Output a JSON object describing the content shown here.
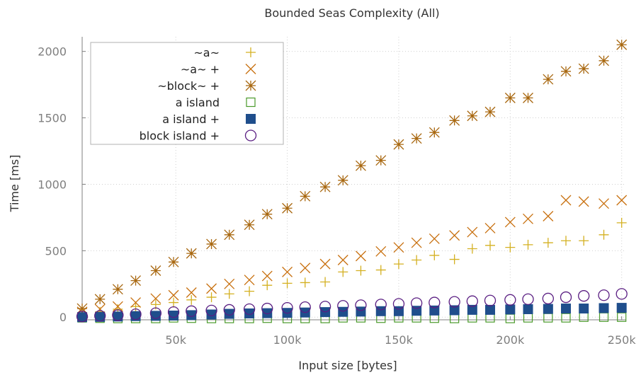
{
  "chart_data": {
    "type": "scatter",
    "title": "Bounded Seas Complexity (All)",
    "xlabel": "Input size [bytes]",
    "ylabel": "Time [ms]",
    "xlim": [
      8000,
      252000
    ],
    "ylim": [
      -20,
      2110
    ],
    "x_ticks": [
      50000,
      100000,
      150000,
      200000,
      250000
    ],
    "x_tick_labels": [
      "50k",
      "100k",
      "150k",
      "200k",
      "250k"
    ],
    "y_ticks": [
      0,
      500,
      1000,
      1500,
      2000
    ],
    "y_tick_labels": [
      "0",
      "500",
      "1000",
      "1500",
      "2000"
    ],
    "grid": true,
    "legend_position": "top-left",
    "x": [
      8000,
      16000,
      24000,
      32000,
      41000,
      49000,
      57000,
      66000,
      74000,
      83000,
      91000,
      100000,
      108000,
      117000,
      125000,
      133000,
      142000,
      150000,
      158000,
      166000,
      175000,
      183000,
      191000,
      200000,
      208000,
      217000,
      225000,
      233000,
      242000,
      250000
    ],
    "series": [
      {
        "name": "~a~",
        "marker": "plus",
        "color": "#d4b021",
        "values": [
          25,
          40,
          60,
          80,
          95,
          110,
          130,
          150,
          175,
          195,
          240,
          255,
          260,
          265,
          340,
          350,
          355,
          400,
          430,
          465,
          435,
          515,
          540,
          525,
          545,
          560,
          575,
          575,
          620,
          710
        ]
      },
      {
        "name": "~a~ +",
        "marker": "x",
        "color": "#c8700f",
        "values": [
          40,
          60,
          80,
          110,
          140,
          165,
          185,
          215,
          250,
          280,
          310,
          340,
          370,
          400,
          430,
          460,
          495,
          525,
          560,
          590,
          615,
          640,
          670,
          715,
          740,
          760,
          880,
          870,
          855,
          880
        ]
      },
      {
        "name": "~block~ +",
        "marker": "asterisk",
        "color": "#a8670f",
        "values": [
          65,
          135,
          210,
          275,
          350,
          415,
          480,
          550,
          620,
          695,
          775,
          820,
          910,
          980,
          1030,
          1140,
          1180,
          1300,
          1345,
          1390,
          1480,
          1515,
          1545,
          1650,
          1650,
          1790,
          1850,
          1870,
          1930,
          2050
        ]
      },
      {
        "name": "a island",
        "marker": "open-square",
        "color": "#4a9a2a",
        "values": [
          -5,
          -8,
          -10,
          -10,
          -10,
          -5,
          -8,
          -10,
          -10,
          -10,
          -8,
          -10,
          -10,
          -10,
          -5,
          -5,
          -8,
          -5,
          -5,
          -8,
          -10,
          -5,
          -5,
          -10,
          -5,
          -5,
          -5,
          0,
          0,
          0
        ]
      },
      {
        "name": "a island +",
        "marker": "filled-square",
        "color": "#1f4e8c",
        "values": [
          0,
          2,
          5,
          8,
          10,
          12,
          15,
          20,
          25,
          28,
          30,
          32,
          35,
          38,
          40,
          42,
          45,
          45,
          48,
          50,
          52,
          55,
          55,
          58,
          60,
          62,
          65,
          65,
          68,
          70
        ]
      },
      {
        "name": "block island +",
        "marker": "open-circle",
        "color": "#5a1e82",
        "values": [
          5,
          10,
          15,
          22,
          30,
          38,
          45,
          50,
          55,
          60,
          65,
          70,
          75,
          80,
          85,
          90,
          95,
          100,
          105,
          110,
          115,
          120,
          125,
          130,
          135,
          140,
          150,
          160,
          165,
          175
        ]
      }
    ]
  }
}
